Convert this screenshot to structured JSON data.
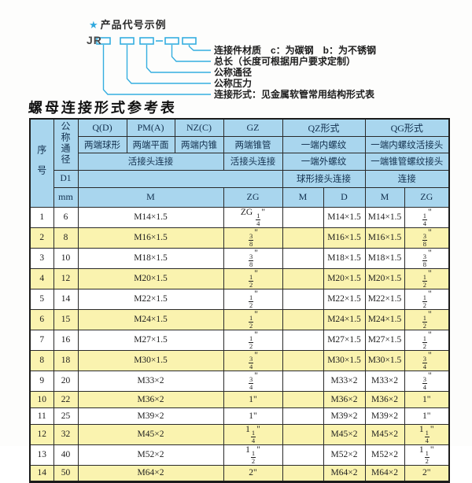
{
  "colors": {
    "header_bg": "#a9d6ee",
    "row_alt_bg": "#faf3af",
    "accent_cyan": "#35aee0",
    "border": "#1b1b1b"
  },
  "diagram": {
    "star": "★",
    "title": "产品代号示例",
    "code_prefix": "JR",
    "labels": [
      "连接件材质　c：为碳钢　b：为不锈钢",
      "总长（长度可根据用户要求定制）",
      "公称通径",
      "公称压力",
      "连接形式：见金属软管常用结构形式表"
    ]
  },
  "table": {
    "title": "螺母连接形式参考表",
    "header": {
      "seq": "序号",
      "dn": "公称通径",
      "d1": "D1",
      "unit_mm": "mm",
      "codes": [
        "Q(D)",
        "PM(A)",
        "NZ(C)",
        "GZ",
        "QZ形式",
        "QG形式"
      ],
      "desc2": [
        "两端球形",
        "两端平面",
        "两端内锥",
        "两端锥管",
        "一端内螺纹",
        "一端内螺纹活接头"
      ],
      "desc3": [
        "活接头连接",
        "活接头连接",
        "一端外螺纹",
        "一端锥管螺纹接头"
      ],
      "desc4": [
        "球形接头连接",
        "连接"
      ],
      "units": [
        "M",
        "ZG",
        "M",
        "D",
        "M",
        "ZG"
      ]
    },
    "rows": [
      [
        "1",
        "6",
        "M14×1.5",
        "ZG {1/4}\"",
        "",
        "M14×1.5",
        "M14×1.5",
        "{1/4}\""
      ],
      [
        "2",
        "8",
        "M16×1.5",
        "{3/8}\"",
        "",
        "M16×1.5",
        "M16×1.5",
        "{3/8}\""
      ],
      [
        "3",
        "10",
        "M18×1.5",
        "{3/8}\"",
        "",
        "M18×1.5",
        "M18×1.5",
        "{3/8}\""
      ],
      [
        "4",
        "12",
        "M20×1.5",
        "{1/2}\"",
        "",
        "M20×1.5",
        "M20×1.5",
        "{1/2}\""
      ],
      [
        "5",
        "14",
        "M22×1.5",
        "{1/2}\"",
        "",
        "M22×1.5",
        "M22×1.5",
        "{1/2}\""
      ],
      [
        "6",
        "15",
        "M24×1.5",
        "{1/2}\"",
        "",
        "M24×1.5",
        "M24×1.5",
        "{1/2}\""
      ],
      [
        "7",
        "16",
        "M27×1.5",
        "{1/2}\"",
        "",
        "M27×1.5",
        "M27×1.5",
        "{1/2}\""
      ],
      [
        "8",
        "18",
        "M30×1.5",
        "{3/4}\"",
        "",
        "M30×1.5",
        "M30×1.5",
        "{3/4}\""
      ],
      [
        "9",
        "20",
        "M33×2",
        "{3/4}\"",
        "",
        "M33×2",
        "M33×2",
        "{3/4}\""
      ],
      [
        "10",
        "22",
        "M36×2",
        "1\"",
        "",
        "M36×2",
        "M36×2",
        "1\""
      ],
      [
        "11",
        "25",
        "M39×2",
        "1\"",
        "",
        "M39×2",
        "M39×2",
        "1\""
      ],
      [
        "12",
        "32",
        "M45×2",
        "1{1/4}\"",
        "",
        "M45×2",
        "M45×2",
        "1{1/4}\""
      ],
      [
        "13",
        "40",
        "M52×2",
        "1{1/2}\"",
        "",
        "M52×2",
        "M52×2",
        "1{1/2}\""
      ],
      [
        "14",
        "50",
        "M64×2",
        "2\"",
        "",
        "M64×2",
        "M64×2",
        "2\""
      ]
    ]
  }
}
